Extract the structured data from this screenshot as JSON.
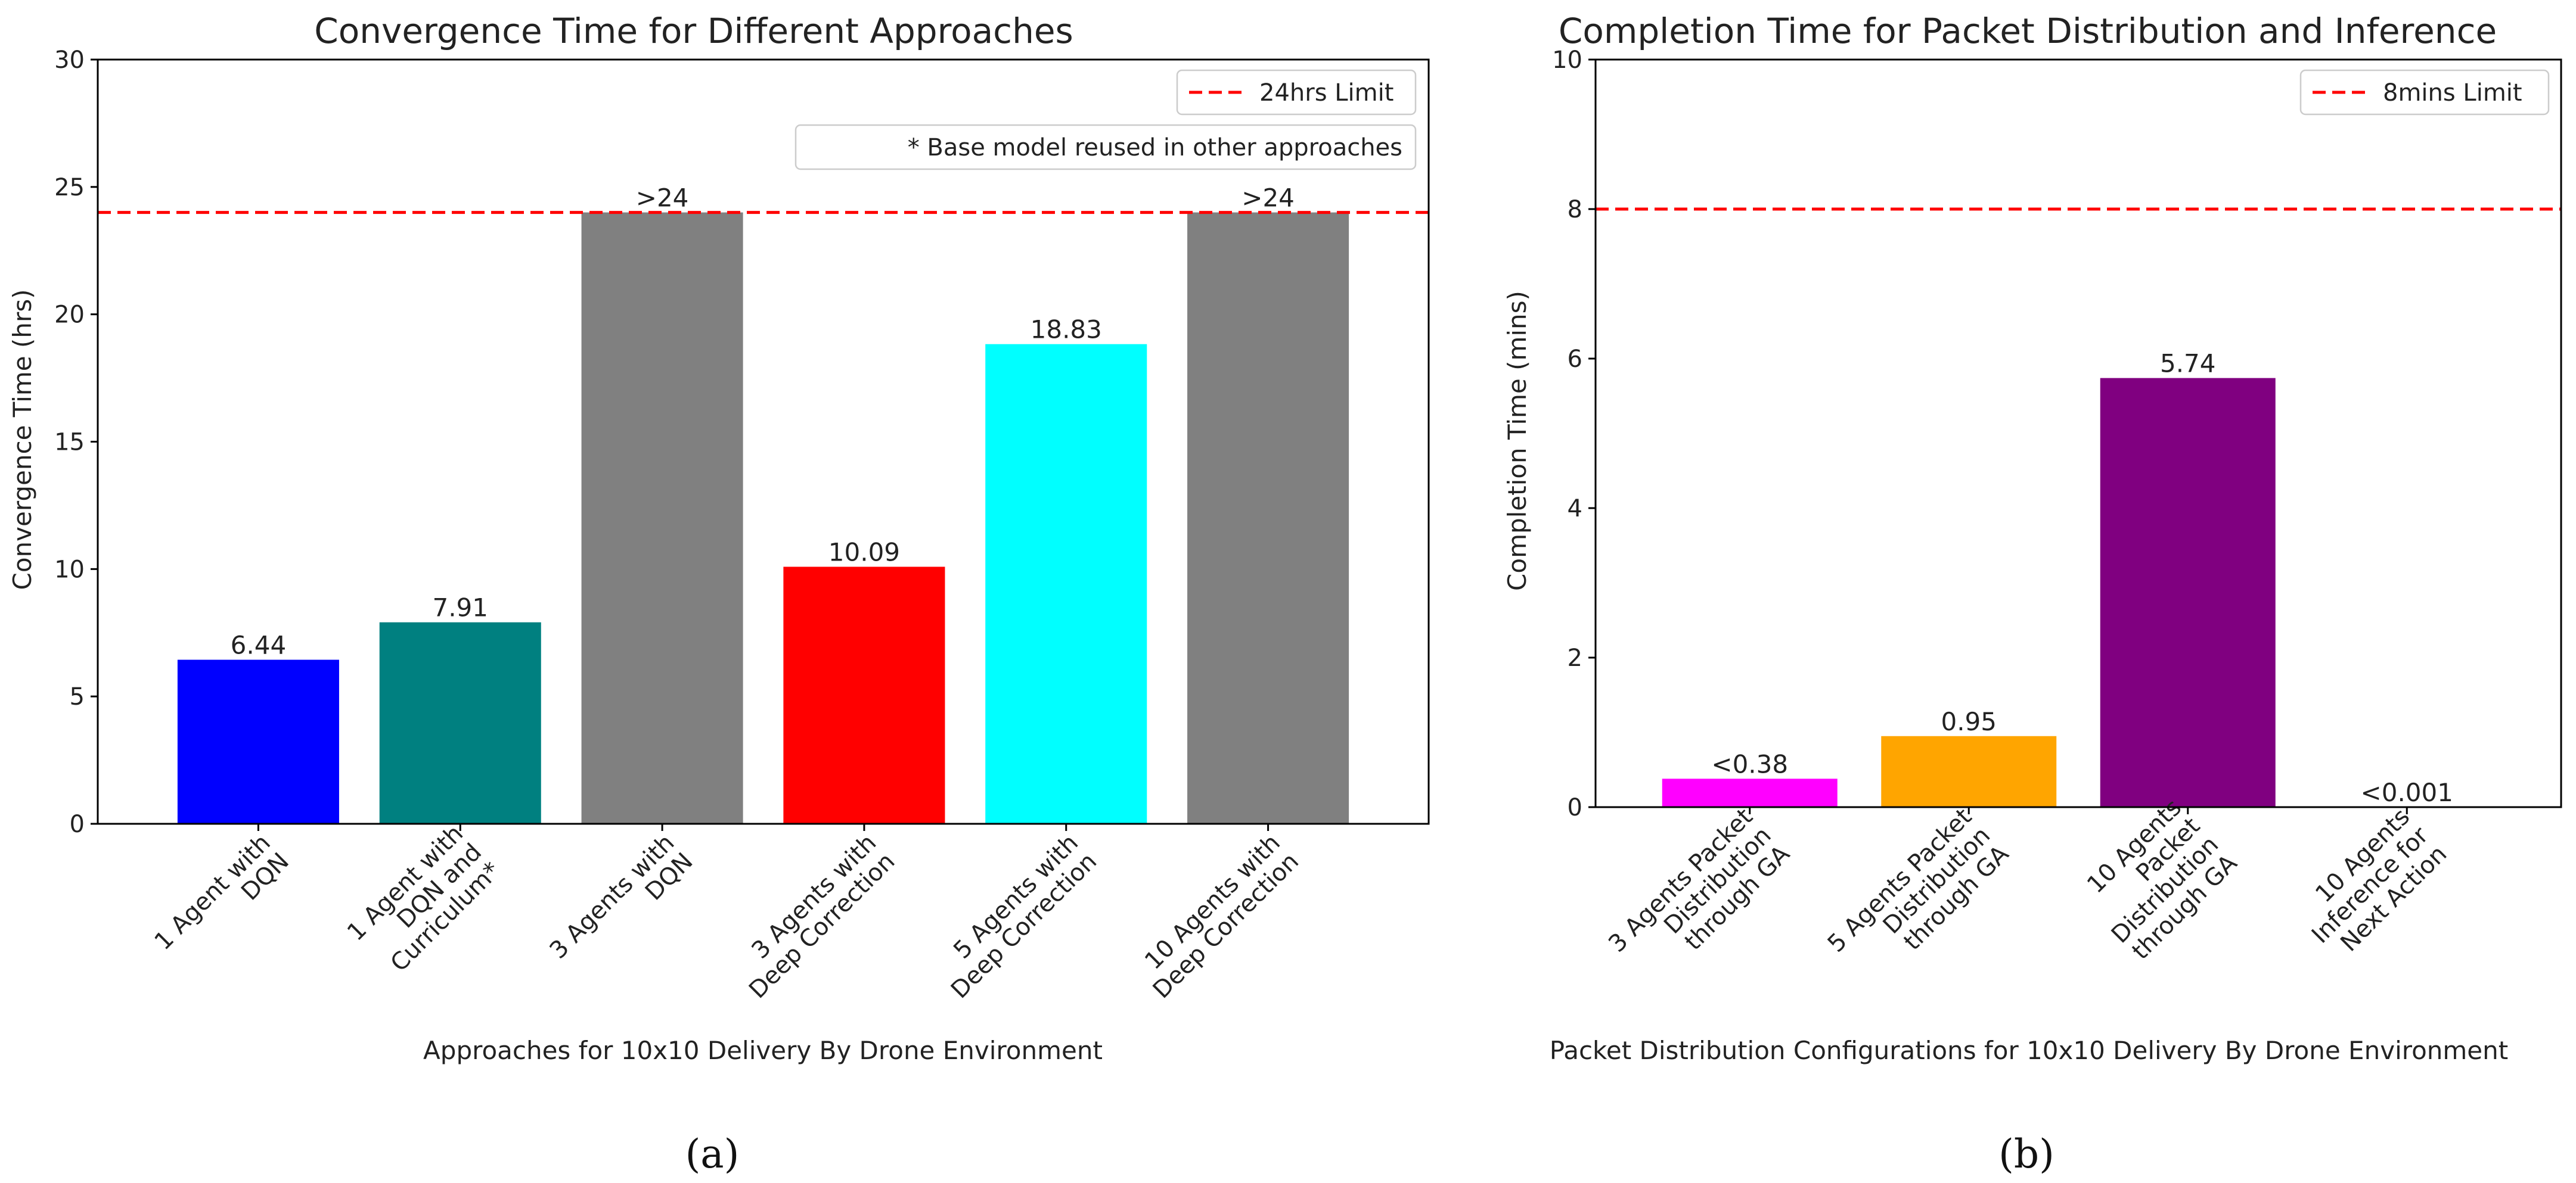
{
  "chart_data": [
    {
      "type": "bar",
      "title": "Convergence Time for Different Approaches",
      "xlabel": "Approaches for 10x10 Delivery By Drone Environment",
      "ylabel": "Convergence Time (hrs)",
      "ylim": [
        0,
        30
      ],
      "yticks": [
        "0",
        "5",
        "10",
        "15",
        "20",
        "25",
        "30"
      ],
      "categories": [
        [
          "1 Agent with",
          "DQN"
        ],
        [
          "1 Agent with",
          "DQN and",
          "Curriculum*"
        ],
        [
          "3 Agents with",
          "DQN"
        ],
        [
          "3 Agents with",
          "Deep Correction"
        ],
        [
          "5 Agents with",
          "Deep Correction"
        ],
        [
          "10 Agents with",
          "Deep Correction"
        ]
      ],
      "values": [
        6.44,
        7.91,
        24,
        10.09,
        18.83,
        24
      ],
      "value_labels": [
        "6.44",
        "7.91",
        ">24",
        "10.09",
        "18.83",
        ">24"
      ],
      "colors": [
        "#0000ff",
        "#008080",
        "#808080",
        "#ff0000",
        "#00ffff",
        "#808080"
      ],
      "limit": {
        "value": 24,
        "label": "24hrs Limit",
        "color": "#ff0000"
      },
      "note": "* Base model reused in other approaches",
      "subfigure": "(a)"
    },
    {
      "type": "bar",
      "title": "Completion Time for Packet Distribution and Inference",
      "xlabel": "Packet Distribution Configurations for 10x10 Delivery By Drone Environment",
      "ylabel": "Completion Time (mins)",
      "ylim": [
        0,
        10
      ],
      "yticks": [
        "0",
        "2",
        "4",
        "6",
        "8",
        "10"
      ],
      "categories": [
        [
          "3 Agents Packet",
          "Distribution",
          "through GA"
        ],
        [
          "5 Agents Packet",
          "Distribution",
          "through GA"
        ],
        [
          "10 Agents",
          "Packet",
          "Distribution",
          "through GA"
        ],
        [
          "10 Agents",
          "Inference for",
          "Next Action"
        ]
      ],
      "values": [
        0.38,
        0.95,
        5.74,
        0.001
      ],
      "value_labels": [
        "<0.38",
        "0.95",
        "5.74",
        "<0.001"
      ],
      "colors": [
        "#ff00ff",
        "#ffa500",
        "#800080",
        "#1f77b4"
      ],
      "limit": {
        "value": 8,
        "label": "8mins Limit",
        "color": "#ff0000"
      },
      "subfigure": "(b)"
    }
  ]
}
